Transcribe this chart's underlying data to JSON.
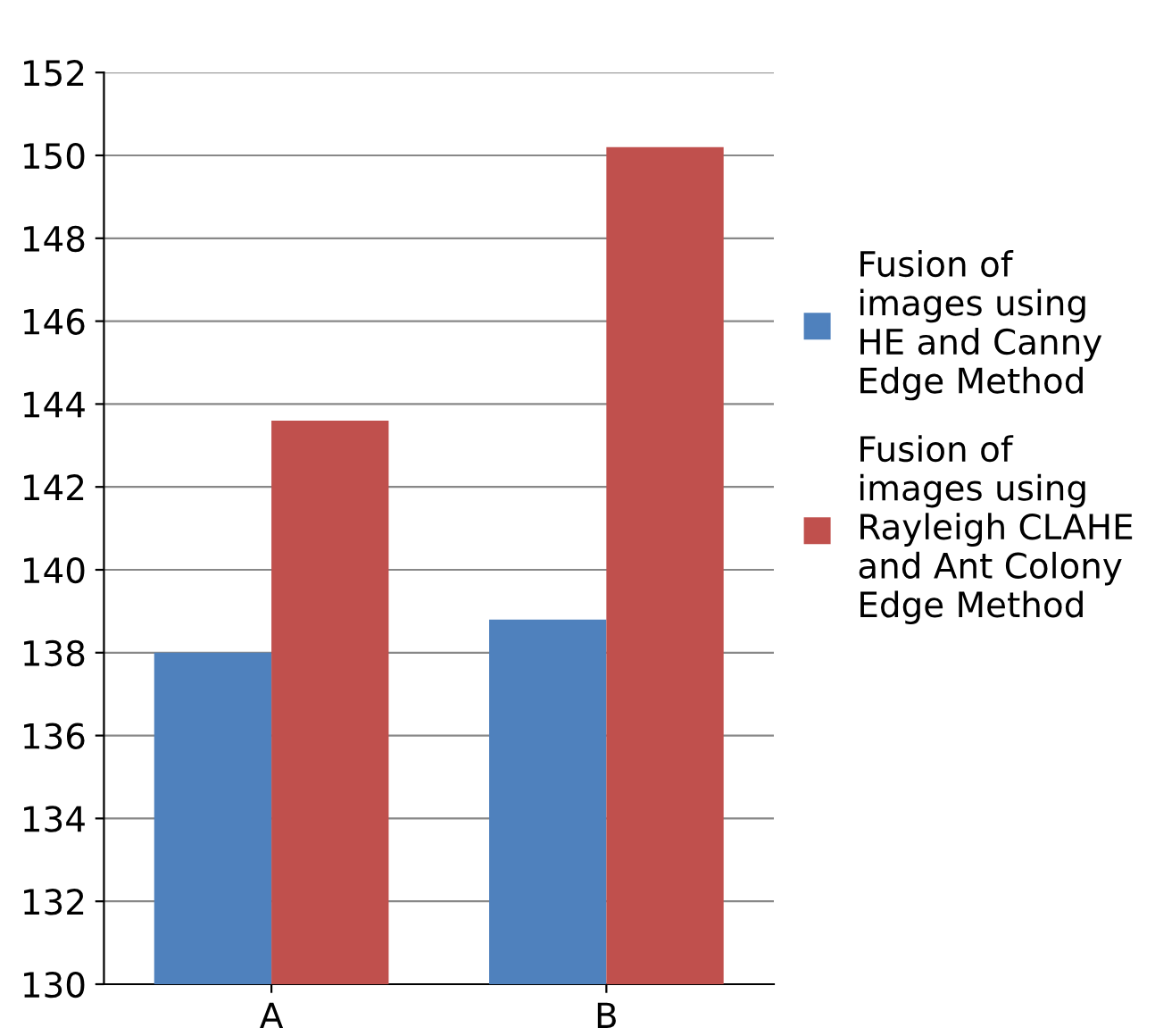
{
  "chart_data": {
    "type": "bar",
    "categories": [
      "A",
      "B"
    ],
    "series": [
      {
        "name": "Fusion of\nimages using\nHE and Canny\nEdge Method",
        "color": "#4f81bd",
        "values": [
          138.0,
          138.8
        ]
      },
      {
        "name": "Fusion of\nimages using\nRayleigh CLAHE\nand Ant Colony\nEdge Method",
        "color": "#c0504d",
        "values": [
          143.6,
          150.2
        ]
      }
    ],
    "ylim": [
      130,
      152
    ],
    "yticks": [
      130,
      132,
      134,
      136,
      138,
      140,
      142,
      144,
      146,
      148,
      150,
      152
    ],
    "grid": "y",
    "legend": "right"
  }
}
